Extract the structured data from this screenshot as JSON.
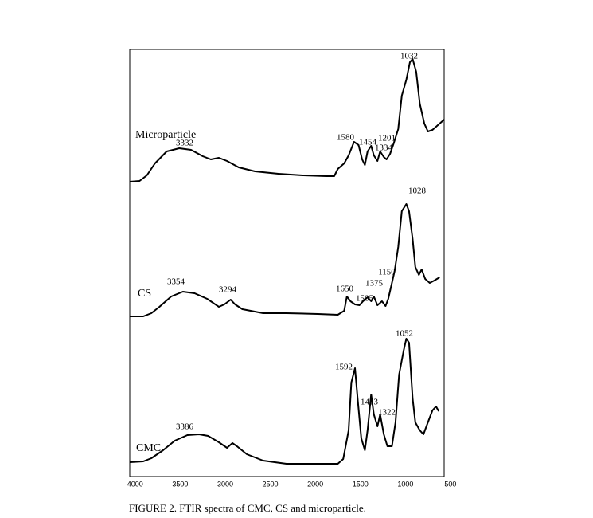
{
  "chart_data": {
    "type": "line",
    "caption": "FIGURE 2. FTIR spectra of  CMC, CS and microparticle.",
    "xlim": [
      4060,
      570
    ],
    "ylim": [
      0,
      536
    ],
    "xticks": [
      4000,
      3500,
      3000,
      2500,
      2000,
      1500,
      1000,
      500
    ],
    "grid": false,
    "series": [
      {
        "name": "Microparticle",
        "color": "#000000",
        "x": [
          4060,
          3950,
          3870,
          3780,
          3650,
          3510,
          3380,
          3250,
          3160,
          3070,
          2980,
          2850,
          2670,
          2410,
          2140,
          1880,
          1790,
          1750,
          1680,
          1630,
          1570,
          1520,
          1480,
          1450,
          1420,
          1380,
          1350,
          1310,
          1280,
          1240,
          1210,
          1170,
          1130,
          1080,
          1040,
          990,
          950,
          920,
          880,
          840,
          790,
          750,
          700,
          640,
          570
        ],
        "values": [
          370,
          371,
          378,
          393,
          408,
          412,
          410,
          402,
          398,
          400,
          396,
          388,
          383,
          380,
          378,
          377,
          377,
          386,
          393,
          403,
          420,
          416,
          398,
          391,
          408,
          415,
          403,
          396,
          408,
          401,
          398,
          405,
          418,
          436,
          478,
          498,
          520,
          524,
          508,
          468,
          443,
          433,
          435,
          441,
          448
        ],
        "annotations": [
          "1032",
          "1580",
          "1454",
          "1201",
          "1334",
          "3332"
        ]
      },
      {
        "name": "CS",
        "color": "#000000",
        "x": [
          4060,
          3910,
          3820,
          3730,
          3600,
          3470,
          3340,
          3200,
          3070,
          3010,
          2940,
          2890,
          2810,
          2580,
          2320,
          1970,
          1750,
          1680,
          1650,
          1610,
          1560,
          1510,
          1470,
          1420,
          1380,
          1350,
          1310,
          1260,
          1220,
          1190,
          1150,
          1120,
          1080,
          1040,
          990,
          960,
          920,
          890,
          850,
          820,
          780,
          730,
          680,
          620
        ],
        "values": [
          201,
          201,
          205,
          213,
          226,
          232,
          230,
          223,
          213,
          216,
          222,
          216,
          210,
          205,
          205,
          204,
          203,
          208,
          226,
          220,
          216,
          215,
          220,
          225,
          220,
          226,
          215,
          220,
          214,
          223,
          243,
          258,
          288,
          333,
          342,
          333,
          298,
          263,
          253,
          260,
          248,
          243,
          246,
          250
        ],
        "annotations": [
          "1028",
          "3354",
          "3294",
          "1650",
          "1585",
          "1375",
          "1150"
        ]
      },
      {
        "name": "CMC",
        "color": "#000000",
        "x": [
          4060,
          3910,
          3820,
          3690,
          3560,
          3420,
          3290,
          3190,
          3070,
          2980,
          2920,
          2870,
          2760,
          2580,
          2320,
          1970,
          1750,
          1690,
          1630,
          1600,
          1560,
          1530,
          1490,
          1450,
          1420,
          1380,
          1350,
          1310,
          1280,
          1240,
          1200,
          1150,
          1110,
          1070,
          1020,
          990,
          960,
          920,
          890,
          840,
          800,
          750,
          700,
          660,
          630
        ],
        "values": [
          18,
          19,
          23,
          33,
          45,
          52,
          53,
          51,
          43,
          36,
          42,
          38,
          28,
          20,
          16,
          16,
          16,
          22,
          58,
          118,
          136,
          98,
          48,
          33,
          58,
          103,
          78,
          63,
          78,
          53,
          38,
          38,
          68,
          128,
          158,
          173,
          168,
          98,
          68,
          58,
          53,
          68,
          83,
          88,
          82
        ],
        "annotations": [
          "1052",
          "1592",
          "1413",
          "1322",
          "3386"
        ]
      }
    ]
  }
}
